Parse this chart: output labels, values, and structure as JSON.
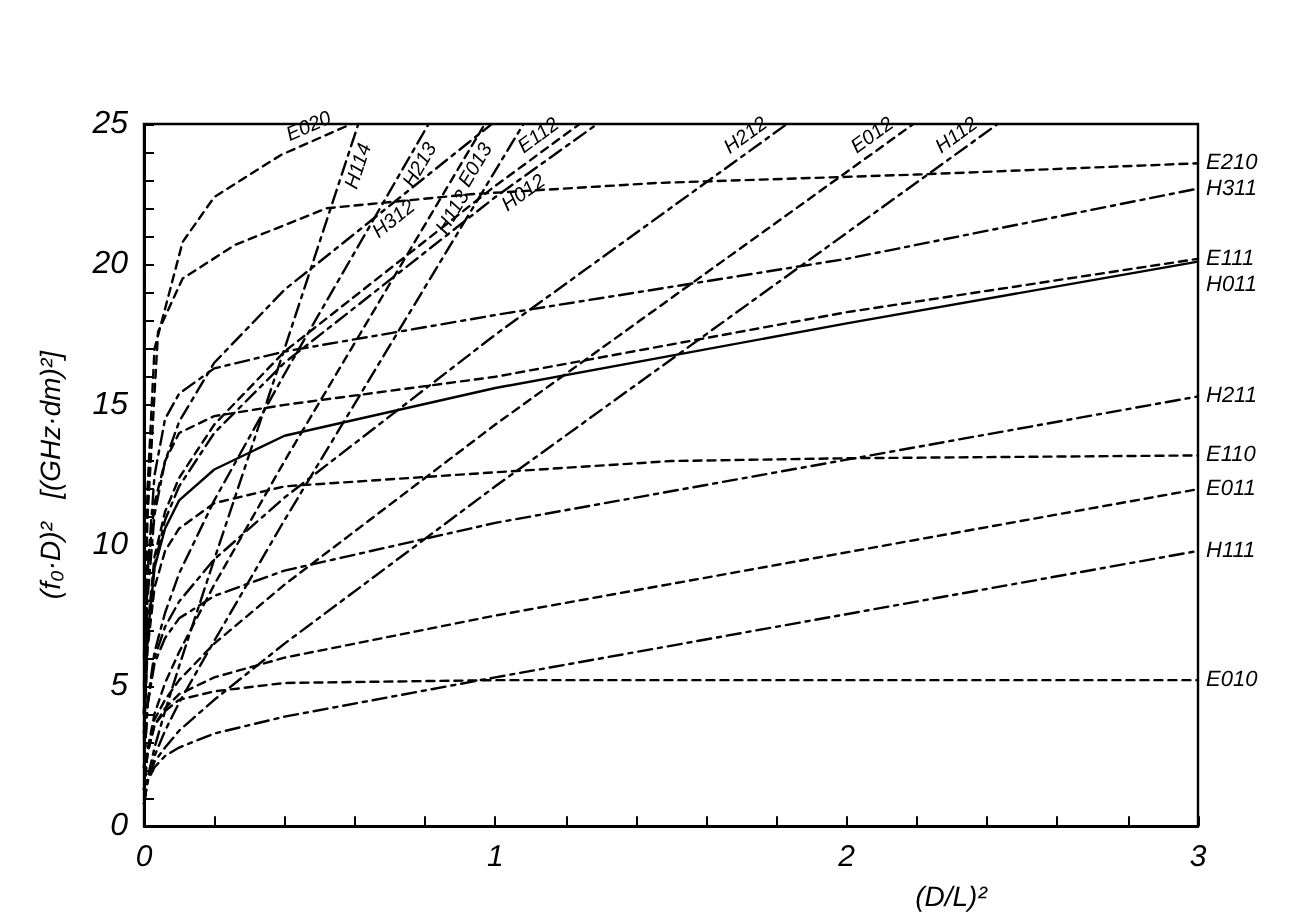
{
  "chart_data": {
    "type": "line",
    "xlabel": "(D/L)²",
    "ylabel": "(f₀·D)²   [(GHz·dm)²]",
    "xlim": [
      0,
      3
    ],
    "ylim": [
      0,
      25
    ],
    "xticks": [
      0,
      {
        "value": 0.2,
        "label": null
      },
      {
        "value": 0.4,
        "label": null
      },
      {
        "value": 0.6,
        "label": null
      },
      {
        "value": 0.8,
        "label": null
      },
      1,
      {
        "value": 1.2,
        "label": null
      },
      {
        "value": 1.4,
        "label": null
      },
      {
        "value": 1.6,
        "label": null
      },
      {
        "value": 1.8,
        "label": null
      },
      2,
      {
        "value": 2.2,
        "label": null
      },
      {
        "value": 2.4,
        "label": null
      },
      {
        "value": 2.6,
        "label": null
      },
      {
        "value": 2.8,
        "label": null
      },
      3
    ],
    "yticks": [
      0,
      {
        "value": 1,
        "label": null
      },
      {
        "value": 2,
        "label": null
      },
      {
        "value": 3,
        "label": null
      },
      {
        "value": 4,
        "label": null
      },
      5,
      {
        "value": 6,
        "label": null
      },
      {
        "value": 7,
        "label": null
      },
      {
        "value": 8,
        "label": null
      },
      {
        "value": 9,
        "label": null
      },
      10,
      {
        "value": 11,
        "label": null
      },
      {
        "value": 12,
        "label": null
      },
      {
        "value": 13,
        "label": null
      },
      {
        "value": 14,
        "label": null
      },
      15,
      {
        "value": 16,
        "label": null
      },
      {
        "value": 17,
        "label": null
      },
      {
        "value": 18,
        "label": null
      },
      {
        "value": 19,
        "label": null
      },
      20,
      {
        "value": 21,
        "label": null
      },
      {
        "value": 22,
        "label": null
      },
      {
        "value": 23,
        "label": null
      },
      {
        "value": 24,
        "label": null
      },
      25
    ],
    "grid": false,
    "legend": false,
    "marker": "none",
    "series": [
      {
        "name": "E010",
        "color": "#000000",
        "line_style": "dotted",
        "x": [
          0,
          0.01,
          0.03,
          0.06,
          0.1,
          0.2,
          0.4,
          1,
          3
        ],
        "values": [
          1.3,
          2.6,
          3.6,
          4.1,
          4.5,
          4.8,
          5.1,
          5.2,
          5.2
        ]
      },
      {
        "name": "H111",
        "color": "#000000",
        "line_style": "dashed",
        "x": [
          0,
          0.01,
          0.03,
          0.06,
          0.1,
          0.2,
          0.4,
          1,
          3
        ],
        "values": [
          0.8,
          1.6,
          2.1,
          2.5,
          2.8,
          3.3,
          3.9,
          5.3,
          9.8
        ]
      },
      {
        "name": "E011",
        "color": "#000000",
        "line_style": "dotted",
        "x": [
          0,
          0.01,
          0.03,
          0.06,
          0.1,
          0.2,
          0.4,
          1,
          3
        ],
        "values": [
          1.3,
          2.6,
          3.6,
          4.2,
          4.7,
          5.3,
          6.0,
          7.5,
          12.0
        ]
      },
      {
        "name": "E110",
        "color": "#000000",
        "line_style": "dotted",
        "x": [
          0,
          0.01,
          0.03,
          0.06,
          0.1,
          0.2,
          0.4,
          1,
          1.5,
          2,
          3
        ],
        "values": [
          3.1,
          6.3,
          8.5,
          9.8,
          10.6,
          11.5,
          12.1,
          12.6,
          13.0,
          13.1,
          13.2
        ]
      },
      {
        "name": "H211",
        "color": "#000000",
        "line_style": "dashed",
        "x": [
          0,
          0.01,
          0.03,
          0.06,
          0.1,
          0.2,
          0.4,
          1,
          3
        ],
        "values": [
          2.1,
          4.3,
          5.8,
          6.7,
          7.4,
          8.2,
          9.1,
          10.8,
          15.3
        ]
      },
      {
        "name": "E111",
        "color": "#000000",
        "line_style": "dotted",
        "x": [
          0,
          0.01,
          0.03,
          0.06,
          0.1,
          0.2,
          0.4,
          1,
          2,
          3
        ],
        "values": [
          4.0,
          9.0,
          11.5,
          13.0,
          14.0,
          14.6,
          15.0,
          16.0,
          18.3,
          20.2
        ]
      },
      {
        "name": "H011",
        "color": "#000000",
        "line_style": "solid",
        "x": [
          0,
          0.01,
          0.03,
          0.06,
          0.1,
          0.2,
          0.4,
          1,
          2,
          3
        ],
        "values": [
          3.3,
          6.7,
          9.2,
          10.6,
          11.6,
          12.7,
          13.9,
          15.6,
          17.9,
          20.1
        ]
      },
      {
        "name": "H311",
        "color": "#000000",
        "line_style": "dashed",
        "x": [
          0,
          0.01,
          0.03,
          0.06,
          0.1,
          0.2,
          0.4,
          1,
          2,
          3
        ],
        "values": [
          4.0,
          9.0,
          12.5,
          14.5,
          15.4,
          16.3,
          16.9,
          18.2,
          20.2,
          22.7
        ]
      },
      {
        "name": "E210",
        "color": "#000000",
        "line_style": "dotted",
        "x": [
          0,
          0.01,
          0.04,
          0.11,
          0.26,
          0.52,
          0.93,
          1.46,
          2.2,
          3
        ],
        "values": [
          5.0,
          11.0,
          17.6,
          19.5,
          20.7,
          22.0,
          22.5,
          22.9,
          23.2,
          23.6
        ]
      },
      {
        "name": "E020",
        "color": "#000000",
        "line_style": "dotted",
        "x": [
          0,
          0.01,
          0.03,
          0.11,
          0.2,
          0.39,
          0.59
        ],
        "values": [
          6.0,
          12.0,
          17.0,
          20.8,
          22.4,
          23.9,
          25
        ]
      },
      {
        "name": "H114",
        "color": "#000000",
        "line_style": "dashed",
        "x": [
          0,
          0.01,
          0.03,
          0.06,
          0.1,
          0.2,
          0.4,
          0.61
        ],
        "values": [
          0.8,
          1.7,
          2.8,
          4.1,
          5.7,
          9.5,
          17.0,
          25
        ]
      },
      {
        "name": "H213",
        "color": "#000000",
        "line_style": "dashed",
        "x": [
          0,
          0.01,
          0.03,
          0.06,
          0.1,
          0.2,
          0.4,
          0.81
        ],
        "values": [
          2.1,
          4.4,
          6.2,
          7.6,
          9.0,
          11.6,
          16.1,
          25
        ]
      },
      {
        "name": "E013",
        "color": "#000000",
        "line_style": "dotted",
        "x": [
          0,
          0.01,
          0.03,
          0.06,
          0.1,
          0.2,
          0.4,
          0.97
        ],
        "values": [
          1.3,
          2.7,
          4.0,
          5.1,
          6.2,
          8.6,
          13.0,
          25
        ]
      },
      {
        "name": "H312",
        "color": "#000000",
        "line_style": "dashed",
        "x": [
          0,
          0.01,
          0.03,
          0.06,
          0.1,
          0.2,
          0.4,
          0.99
        ],
        "values": [
          4.0,
          8.1,
          11.1,
          13.0,
          14.4,
          16.5,
          19.1,
          25
        ]
      },
      {
        "name": "H113",
        "color": "#000000",
        "line_style": "dashed",
        "x": [
          0,
          0.01,
          0.03,
          0.06,
          0.1,
          0.2,
          0.4,
          1.08
        ],
        "values": [
          0.8,
          1.6,
          2.5,
          3.4,
          4.4,
          6.6,
          10.9,
          25
        ]
      },
      {
        "name": "E112",
        "color": "#000000",
        "line_style": "dotted",
        "x": [
          0,
          0.01,
          0.03,
          0.06,
          0.1,
          0.2,
          0.4,
          1,
          1.24
        ],
        "values": [
          3.6,
          7.0,
          9.6,
          11.2,
          12.4,
          14.3,
          16.9,
          22.8,
          25
        ]
      },
      {
        "name": "H012",
        "color": "#000000",
        "line_style": "dashed",
        "x": [
          0,
          0.01,
          0.03,
          0.06,
          0.1,
          0.2,
          0.4,
          1,
          1.29
        ],
        "values": [
          3.3,
          6.7,
          9.3,
          10.9,
          12.1,
          14.0,
          16.5,
          22.4,
          25
        ]
      },
      {
        "name": "H212",
        "color": "#000000",
        "line_style": "dashed",
        "x": [
          0,
          0.01,
          0.03,
          0.06,
          0.1,
          0.2,
          0.4,
          1,
          1.83
        ],
        "values": [
          2.1,
          4.3,
          6.0,
          7.1,
          8.0,
          9.5,
          11.7,
          17.5,
          25
        ]
      },
      {
        "name": "E012",
        "color": "#000000",
        "line_style": "dotted",
        "x": [
          0,
          0.01,
          0.03,
          0.06,
          0.1,
          0.2,
          0.4,
          1,
          2.19
        ],
        "values": [
          1.3,
          2.7,
          3.8,
          4.5,
          5.2,
          6.5,
          8.6,
          14.3,
          25
        ]
      },
      {
        "name": "H112",
        "color": "#000000",
        "line_style": "dashed",
        "x": [
          0,
          0.01,
          0.03,
          0.06,
          0.1,
          0.2,
          0.4,
          1,
          2.43
        ],
        "values": [
          0.8,
          1.6,
          2.3,
          2.8,
          3.4,
          4.5,
          6.5,
          12.1,
          25
        ]
      }
    ]
  }
}
